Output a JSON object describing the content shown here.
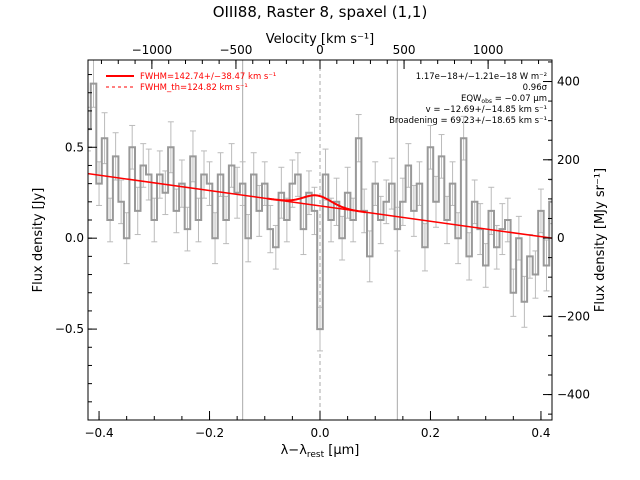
{
  "chart_data": {
    "type": "line",
    "title": "OIII88, Raster 8, spaxel (1,1)",
    "xlabel": "λ−λ",
    "xlabel_sub": "rest",
    "xlabel_unit": " [μm]",
    "ylabel": "Flux density [Jy]",
    "ylabel_right": "Flux density [MJy sr⁻¹]",
    "top_axis_label": "Velocity [km s⁻¹]",
    "xlim": [
      -0.42,
      0.42
    ],
    "ylim": [
      -1.0,
      0.98
    ],
    "top_lim": [
      -1380,
      1380
    ],
    "right_lim": [
      -465,
      455
    ],
    "xticks": [
      -0.4,
      -0.2,
      0.0,
      0.2,
      0.4
    ],
    "xtick_labels": [
      "−0.4",
      "−0.2",
      "0.0",
      "0.2",
      "0.4"
    ],
    "yticks": [
      -0.5,
      0.0,
      0.5
    ],
    "ytick_labels": [
      "−0.5",
      "0.0",
      "0.5"
    ],
    "top_ticks": [
      -1000,
      -500,
      0,
      500,
      1000
    ],
    "top_tick_labels": [
      "−1000",
      "−500",
      "0",
      "500",
      "1000"
    ],
    "right_ticks": [
      -400,
      -200,
      0,
      200,
      400
    ],
    "right_tick_labels": [
      "−400",
      "−200",
      "0",
      "200",
      "400"
    ],
    "vlines": [
      -0.14,
      0.0,
      0.14
    ],
    "colors": {
      "data": "#999999",
      "fit": "#ff0000",
      "axis": "#000000",
      "guide": "#aaaaaa"
    },
    "legend": [
      {
        "label": "FWHM=142.74+/−38.47 km s⁻¹",
        "style": "solid"
      },
      {
        "label": "FWHM_th=124.82 km s⁻¹",
        "style": "dashed"
      }
    ],
    "annotations": [
      "1.17e−18+/−1.21e−18 W m⁻²",
      "0.96σ",
      "EQW",
      "obs",
      " = −0.07 μm",
      "v = −12.69+/−14.85 km s⁻¹",
      "Broadening = 69.23+/−18.65 km s⁻¹"
    ],
    "continuum": {
      "x": [
        -0.42,
        0.42
      ],
      "y": [
        0.355,
        0.0
      ]
    },
    "line_fit": {
      "center": -0.005,
      "peak": 0.055,
      "sigma": 0.025
    },
    "series": [
      {
        "x": [
          -0.42,
          -0.41,
          -0.4,
          -0.39,
          -0.38,
          -0.37,
          -0.36,
          -0.35,
          -0.34,
          -0.33,
          -0.32,
          -0.31,
          -0.3,
          -0.29,
          -0.28,
          -0.27,
          -0.26,
          -0.25,
          -0.24,
          -0.23,
          -0.22,
          -0.21,
          -0.2,
          -0.19,
          -0.18,
          -0.17,
          -0.16,
          -0.15,
          -0.14,
          -0.13,
          -0.12,
          -0.11,
          -0.1,
          -0.09,
          -0.08,
          -0.07,
          -0.06,
          -0.05,
          -0.04,
          -0.03,
          -0.02,
          -0.01,
          0.0,
          0.01,
          0.02,
          0.03,
          0.04,
          0.05,
          0.06,
          0.07,
          0.08,
          0.09,
          0.1,
          0.11,
          0.12,
          0.13,
          0.14,
          0.15,
          0.16,
          0.17,
          0.18,
          0.19,
          0.2,
          0.21,
          0.22,
          0.23,
          0.24,
          0.25,
          0.26,
          0.27,
          0.28,
          0.29,
          0.3,
          0.31,
          0.32,
          0.33,
          0.34,
          0.35,
          0.36,
          0.37,
          0.38,
          0.39,
          0.4,
          0.41,
          0.42
        ],
        "y": [
          0.6,
          0.85,
          0.3,
          0.55,
          0.1,
          0.45,
          0.2,
          0.0,
          0.5,
          0.15,
          0.4,
          0.35,
          0.1,
          0.35,
          0.25,
          0.5,
          0.15,
          0.3,
          0.05,
          0.45,
          0.1,
          0.35,
          0.3,
          0.0,
          0.35,
          0.1,
          0.4,
          0.25,
          0.3,
          0.0,
          0.35,
          0.15,
          0.3,
          0.05,
          -0.05,
          0.25,
          0.1,
          0.3,
          0.35,
          0.05,
          0.25,
          0.15,
          -0.5,
          0.35,
          0.1,
          0.2,
          0.0,
          0.25,
          0.1,
          0.55,
          0.15,
          -0.1,
          0.3,
          0.1,
          0.2,
          0.3,
          0.05,
          0.2,
          0.4,
          0.15,
          0.3,
          -0.05,
          0.5,
          0.2,
          0.45,
          0.1,
          0.3,
          0.0,
          0.55,
          -0.1,
          0.2,
          0.05,
          -0.15,
          0.15,
          -0.05,
          0.05,
          0.1,
          -0.3,
          0.0,
          -0.35,
          -0.1,
          -0.2,
          0.15,
          -0.15,
          0.2
        ],
        "yerr": [
          0.12,
          0.13,
          0.12,
          0.14,
          0.12,
          0.13,
          0.12,
          0.14,
          0.12,
          0.13,
          0.12,
          0.14,
          0.12,
          0.13,
          0.12,
          0.14,
          0.12,
          0.13,
          0.12,
          0.14,
          0.12,
          0.13,
          0.12,
          0.14,
          0.12,
          0.13,
          0.12,
          0.14,
          0.12,
          0.13,
          0.12,
          0.14,
          0.12,
          0.13,
          0.12,
          0.14,
          0.12,
          0.13,
          0.12,
          0.14,
          0.12,
          0.13,
          0.12,
          0.14,
          0.12,
          0.13,
          0.12,
          0.14,
          0.12,
          0.13,
          0.12,
          0.14,
          0.12,
          0.13,
          0.12,
          0.14,
          0.12,
          0.13,
          0.12,
          0.14,
          0.12,
          0.13,
          0.12,
          0.14,
          0.12,
          0.13,
          0.12,
          0.14,
          0.12,
          0.13,
          0.12,
          0.14,
          0.12,
          0.13,
          0.12,
          0.14,
          0.12,
          0.13,
          0.12,
          0.14,
          0.12,
          0.13,
          0.12,
          0.14,
          0.12
        ]
      }
    ]
  }
}
